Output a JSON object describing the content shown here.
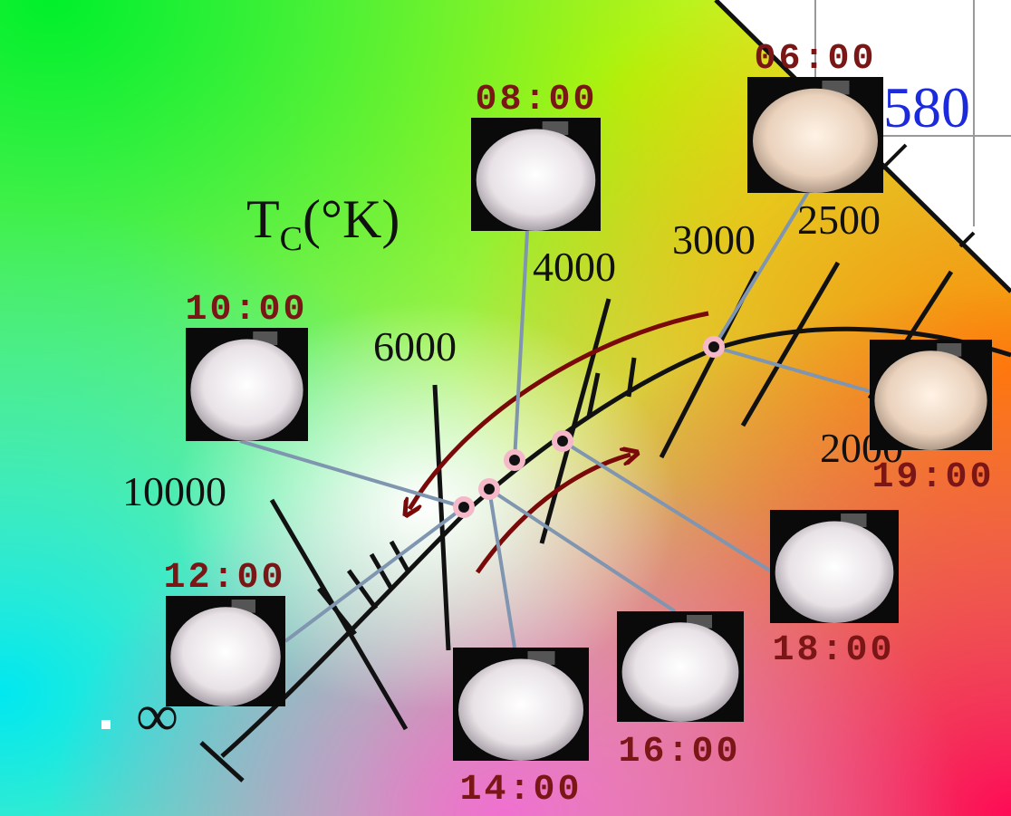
{
  "axis_title": {
    "main": "T",
    "subscript": "C",
    "unit": "(°K)"
  },
  "wavelength_label": "580",
  "infinity_label": "∞",
  "temperature_labels": [
    "10000",
    "6000",
    "4000",
    "3000",
    "2500",
    "2000"
  ],
  "photos": [
    {
      "time": "06:00"
    },
    {
      "time": "08:00"
    },
    {
      "time": "10:00"
    },
    {
      "time": "12:00"
    },
    {
      "time": "14:00"
    },
    {
      "time": "16:00"
    },
    {
      "time": "18:00"
    },
    {
      "time": "19:00"
    }
  ]
}
